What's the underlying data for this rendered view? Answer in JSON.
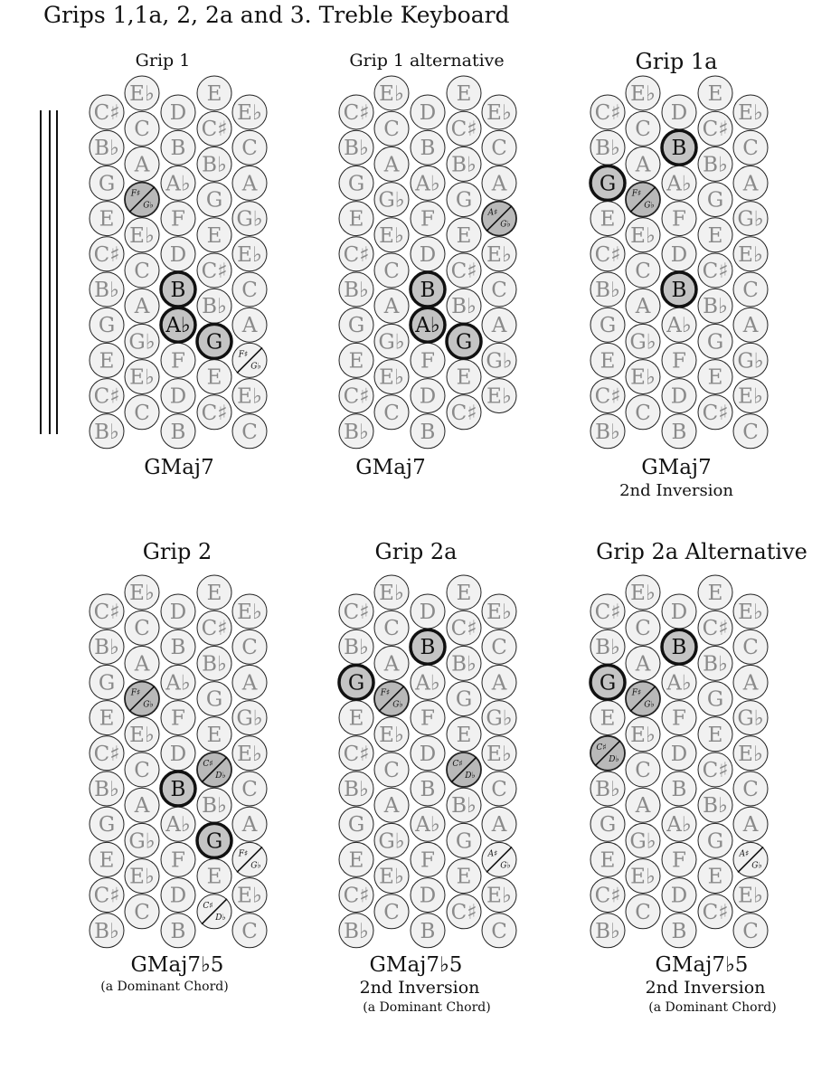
{
  "title": "Grips 1,1a, 2, 2a and 3. Treble Keyboard",
  "grips": [
    {
      "title": "Grip 1",
      "chord": "GMaj7",
      "sub1": "",
      "sub2": "",
      "rows": [
        [
          "C♯",
          "E♭",
          "D",
          "E",
          "E♭"
        ],
        [
          "B♭",
          "C",
          "B",
          "C♯",
          "C"
        ],
        [
          "G",
          "A",
          "A♭",
          "B♭",
          "A"
        ],
        [
          "E",
          "F♯|G♭",
          "F",
          "G",
          "G♭"
        ],
        [
          "C♯",
          "E♭",
          "D",
          "E",
          "E♭"
        ],
        [
          "B♭",
          "C",
          "B",
          "C♯",
          "C"
        ],
        [
          "G",
          "A",
          "A♭",
          "B♭",
          "A"
        ],
        [
          "E",
          "G♭",
          "F",
          "G",
          "F♯|G♭"
        ],
        [
          "C♯",
          "E♭",
          "D",
          "E",
          "E♭"
        ],
        [
          "B♭",
          "C",
          "B",
          "C♯",
          "C"
        ]
      ],
      "highlights": [
        "5,2",
        "6,2",
        "7,3"
      ],
      "shaded": [
        "3,1"
      ]
    },
    {
      "title": "Grip 1 alternative",
      "chord": "GMaj7",
      "sub1": "",
      "sub2": "",
      "rows": [
        [
          "C♯",
          "E♭",
          "D",
          "E",
          "E♭"
        ],
        [
          "B♭",
          "C",
          "B",
          "C♯",
          "C"
        ],
        [
          "G",
          "A",
          "A♭",
          "B♭",
          "A"
        ],
        [
          "E",
          "G♭",
          "F",
          "G",
          "A♯|G♭"
        ],
        [
          "C♯",
          "E♭",
          "D",
          "E",
          "E♭"
        ],
        [
          "B♭",
          "C",
          "B",
          "C♯",
          "C"
        ],
        [
          "G",
          "A",
          "A♭",
          "B♭",
          "A"
        ],
        [
          "E",
          "G♭",
          "F",
          "G",
          "G♭"
        ],
        [
          "C♯",
          "E♭",
          "D",
          "E",
          "E♭"
        ],
        [
          "B♭",
          "C",
          "B",
          "C♯",
          ""
        ]
      ],
      "highlights": [
        "5,2",
        "6,2",
        "7,3"
      ],
      "shaded": [
        "3,4"
      ]
    },
    {
      "title": "Grip 1a",
      "chord": "GMaj7",
      "sub1": "2nd Inversion",
      "sub2": "",
      "rows": [
        [
          "C♯",
          "E♭",
          "D",
          "E",
          "E♭"
        ],
        [
          "B♭",
          "C",
          "B",
          "C♯",
          "C"
        ],
        [
          "G",
          "A",
          "A♭",
          "B♭",
          "A"
        ],
        [
          "E",
          "F♯|G♭",
          "F",
          "G",
          "G♭"
        ],
        [
          "C♯",
          "E♭",
          "D",
          "E",
          "E♭"
        ],
        [
          "B♭",
          "C",
          "B",
          "C♯",
          "C"
        ],
        [
          "G",
          "A",
          "A♭",
          "B♭",
          "A"
        ],
        [
          "E",
          "G♭",
          "F",
          "G",
          "G♭"
        ],
        [
          "C♯",
          "E♭",
          "D",
          "E",
          "E♭"
        ],
        [
          "B♭",
          "C",
          "B",
          "C♯",
          "C"
        ]
      ],
      "highlights": [
        "1,2",
        "2,0",
        "5,2"
      ],
      "shaded": [
        "3,1"
      ]
    },
    {
      "title": "Grip 2",
      "chord": "GMaj7♭5",
      "sub1": "(a Dominant Chord)",
      "sub2": "",
      "rows": [
        [
          "C♯",
          "E♭",
          "D",
          "E",
          "E♭"
        ],
        [
          "B♭",
          "C",
          "B",
          "C♯",
          "C"
        ],
        [
          "G",
          "A",
          "A♭",
          "B♭",
          "A"
        ],
        [
          "E",
          "F♯|G♭",
          "F",
          "G",
          "G♭"
        ],
        [
          "C♯",
          "E♭",
          "D",
          "E",
          "E♭"
        ],
        [
          "B♭",
          "C",
          "B",
          "C♯|D♭",
          "C"
        ],
        [
          "G",
          "A",
          "A♭",
          "B♭",
          "A"
        ],
        [
          "E",
          "G♭",
          "F",
          "G",
          "F♯|G♭"
        ],
        [
          "C♯",
          "E♭",
          "D",
          "E",
          "E♭"
        ],
        [
          "B♭",
          "C",
          "B",
          "C♯|D♭",
          "C"
        ]
      ],
      "highlights": [
        "5,2",
        "7,3"
      ],
      "shaded": [
        "3,1",
        "5,3"
      ]
    },
    {
      "title": "Grip 2a",
      "chord": "GMaj7♭5",
      "sub1": "2nd Inversion",
      "sub2": "(a Dominant Chord)",
      "rows": [
        [
          "C♯",
          "E♭",
          "D",
          "E",
          "E♭"
        ],
        [
          "B♭",
          "C",
          "B",
          "C♯",
          "C"
        ],
        [
          "G",
          "A",
          "A♭",
          "B♭",
          "A"
        ],
        [
          "E",
          "F♯|G♭",
          "F",
          "G",
          "G♭"
        ],
        [
          "C♯",
          "E♭",
          "D",
          "E",
          "E♭"
        ],
        [
          "B♭",
          "C",
          "B",
          "C♯|D♭",
          "C"
        ],
        [
          "G",
          "A",
          "A♭",
          "B♭",
          "A"
        ],
        [
          "E",
          "G♭",
          "F",
          "G",
          "A♯|G♭"
        ],
        [
          "C♯",
          "E♭",
          "D",
          "E",
          "E♭"
        ],
        [
          "B♭",
          "C",
          "B",
          "C♯",
          "C"
        ]
      ],
      "highlights": [
        "1,2",
        "2,0"
      ],
      "shaded": [
        "3,1",
        "5,3"
      ]
    },
    {
      "title": "Grip 2a Alternative",
      "chord": "GMaj7♭5",
      "sub1": "2nd Inversion",
      "sub2": "(a Dominant Chord)",
      "rows": [
        [
          "C♯",
          "E♭",
          "D",
          "E",
          "E♭"
        ],
        [
          "B♭",
          "C",
          "B",
          "C♯",
          "C"
        ],
        [
          "G",
          "A",
          "A♭",
          "B♭",
          "A"
        ],
        [
          "E",
          "F♯|G♭",
          "F",
          "G",
          "G♭"
        ],
        [
          "C♯|D♭",
          "E♭",
          "D",
          "E",
          "E♭"
        ],
        [
          "B♭",
          "C",
          "B",
          "C♯",
          "C"
        ],
        [
          "G",
          "A",
          "A♭",
          "B♭",
          "A"
        ],
        [
          "E",
          "G♭",
          "F",
          "G",
          "A♯|G♭"
        ],
        [
          "C♯",
          "E♭",
          "D",
          "E",
          "E♭"
        ],
        [
          "B♭",
          "C",
          "B",
          "C♯",
          "C"
        ]
      ],
      "highlights": [
        "1,2",
        "2,0"
      ],
      "shaded": [
        "3,1",
        "4,0"
      ]
    }
  ]
}
